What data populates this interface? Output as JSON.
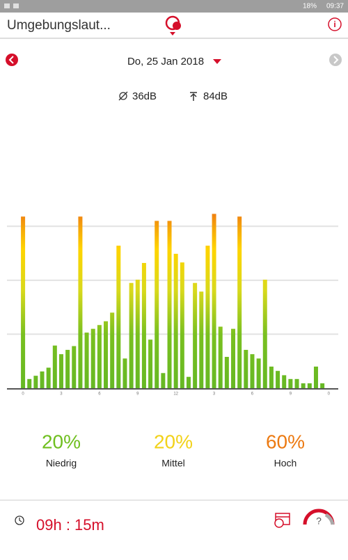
{
  "status_bar": {
    "battery": "18%",
    "time": "09:37"
  },
  "header": {
    "title": "Umgebungslaut..."
  },
  "date": "Do, 25 Jan 2018",
  "stats": {
    "average": "36dB",
    "maximum": "84dB"
  },
  "chart_data": {
    "type": "bar",
    "values": [
      3.18,
      0.17,
      0.23,
      0.31,
      0.38,
      0.79,
      0.63,
      0.71,
      0.78,
      3.18,
      1.03,
      1.1,
      1.17,
      1.24,
      1.4,
      2.64,
      0.55,
      1.95,
      2.01,
      2.32,
      0.9,
      3.1,
      0.28,
      3.1,
      2.49,
      2.33,
      0.21,
      1.95,
      1.79,
      2.64,
      3.23,
      1.14,
      0.58,
      1.1,
      3.18,
      0.71,
      0.63,
      0.55,
      2.01,
      0.4,
      0.32,
      0.24,
      0.17,
      0.17,
      0.09,
      0.09,
      0.4,
      0.09
    ],
    "xtick_labels": [
      "0",
      "3",
      "6",
      "9",
      "12",
      "3",
      "6",
      "9",
      "0"
    ],
    "ylim": [
      0,
      3.3
    ],
    "yticks": [
      1,
      2,
      3
    ],
    "grid": true
  },
  "levels": [
    {
      "percent": "20%",
      "label": "Niedrig",
      "color": "#6fbf1f"
    },
    {
      "percent": "20%",
      "label": "Mittel",
      "color": "#f2d21a"
    },
    {
      "percent": "60%",
      "label": "Hoch",
      "color": "#ec7a12"
    }
  ],
  "footer": {
    "duration": "09h : 15m"
  }
}
